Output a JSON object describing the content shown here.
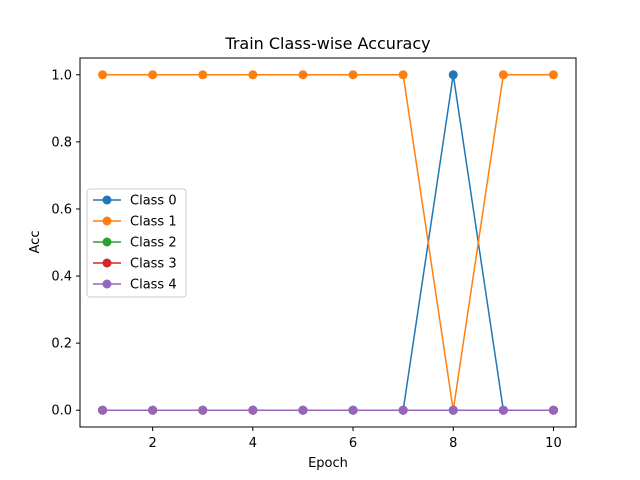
{
  "chart_data": {
    "type": "line",
    "title": "Train Class-wise Accuracy",
    "xlabel": "Epoch",
    "ylabel": "Acc",
    "x": [
      1,
      2,
      3,
      4,
      5,
      6,
      7,
      8,
      9,
      10
    ],
    "xlim": [
      0.55,
      10.45
    ],
    "ylim": [
      -0.05,
      1.05
    ],
    "xticks": [
      2,
      4,
      6,
      8,
      10
    ],
    "yticks": [
      0.0,
      0.2,
      0.4,
      0.6,
      0.8,
      1.0
    ],
    "xtick_labels": [
      "2",
      "4",
      "6",
      "8",
      "10"
    ],
    "ytick_labels": [
      "0.0",
      "0.2",
      "0.4",
      "0.6",
      "0.8",
      "1.0"
    ],
    "grid": false,
    "legend_position": "center-left",
    "series": [
      {
        "name": "Class 0",
        "color": "#1f77b4",
        "values": [
          0,
          0,
          0,
          0,
          0,
          0,
          0,
          1,
          0,
          0
        ]
      },
      {
        "name": "Class 1",
        "color": "#ff7f0e",
        "values": [
          1,
          1,
          1,
          1,
          1,
          1,
          1,
          0,
          1,
          1
        ]
      },
      {
        "name": "Class 2",
        "color": "#2ca02c",
        "values": [
          0,
          0,
          0,
          0,
          0,
          0,
          0,
          0,
          0,
          0
        ]
      },
      {
        "name": "Class 3",
        "color": "#d62728",
        "values": [
          0,
          0,
          0,
          0,
          0,
          0,
          0,
          0,
          0,
          0
        ]
      },
      {
        "name": "Class 4",
        "color": "#9467bd",
        "values": [
          0,
          0,
          0,
          0,
          0,
          0,
          0,
          0,
          0,
          0
        ]
      }
    ]
  }
}
